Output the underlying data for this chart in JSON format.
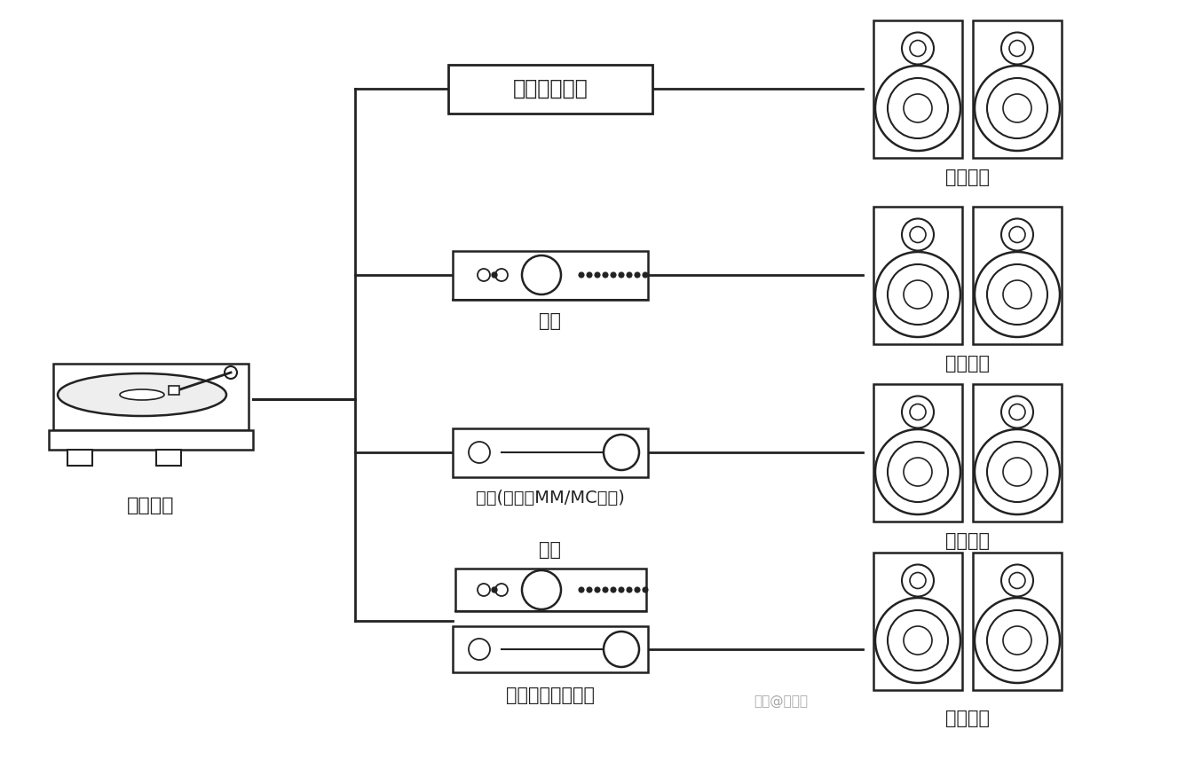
{
  "background_color": "#ffffff",
  "line_color": "#222222",
  "text_color": "#222222",
  "labels": {
    "turntable": "黑胶唱机",
    "row0_mid": "唱机自带唱放",
    "row1_mid": "唱放",
    "row2_mid": "功放(带对应MM/MC唱放)",
    "row3_top": "唱放",
    "row3_mid": "功放（不带唱放）",
    "speaker0": "有源音箱",
    "speaker1": "有源音箱",
    "speaker2": "无源音箱",
    "speaker3": "无源音箱",
    "watermark": "知乎@海绵园"
  }
}
